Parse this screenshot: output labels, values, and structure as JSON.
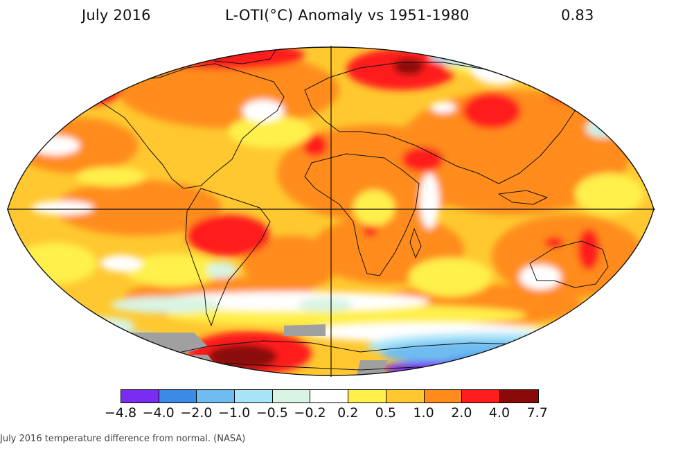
{
  "header": {
    "date": "July 2016",
    "title": "L-OTI(°C) Anomaly vs 1951-1980",
    "global_value": "0.83"
  },
  "legend": {
    "colors": [
      "#7a2df0",
      "#3a8ae8",
      "#6ebcf0",
      "#a8e4f8",
      "#d8f4e4",
      "#ffffff",
      "#fff04c",
      "#ffc830",
      "#ff8c1c",
      "#ff1c1c",
      "#8a0a0a"
    ],
    "ticks": [
      "−4.8",
      "−4.0",
      "−2.0",
      "−1.0",
      "−0.5",
      "−0.2",
      "0.2",
      "0.5",
      "1.0",
      "2.0",
      "4.0",
      "7.7"
    ]
  },
  "caption": "July 2016 temperature difference from normal. (NASA)"
}
